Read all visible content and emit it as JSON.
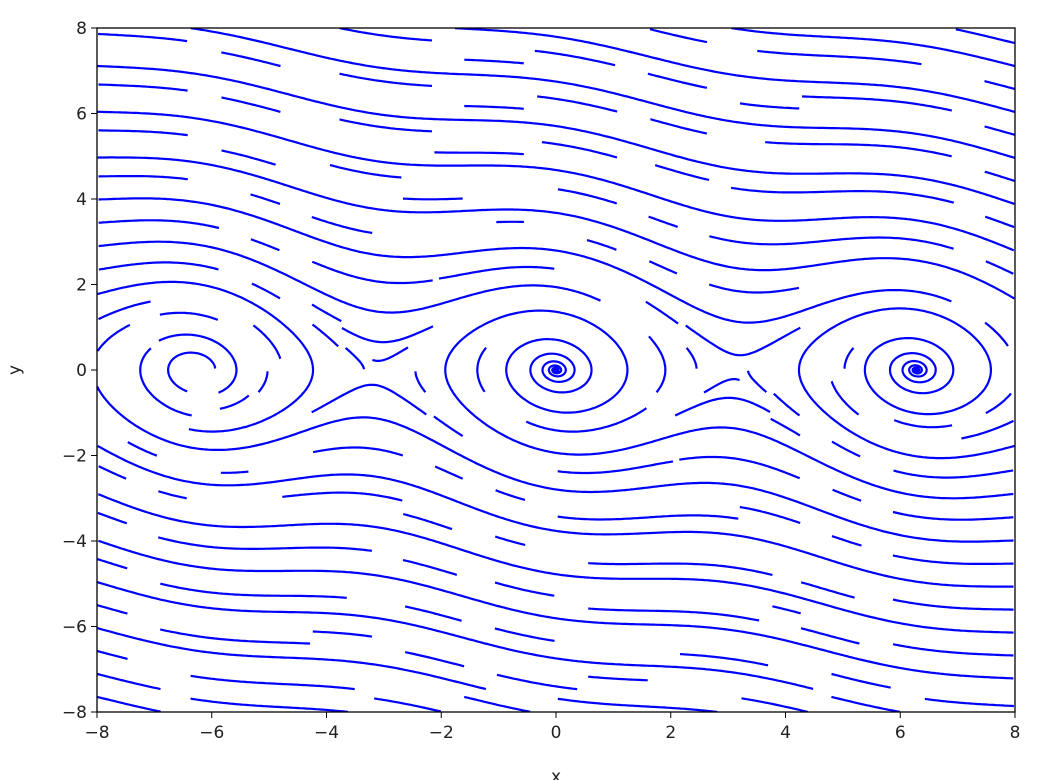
{
  "chart_data": {
    "type": "streamplot",
    "title": "",
    "xlabel": "x",
    "ylabel": "y",
    "xlim": [
      -8,
      8
    ],
    "ylim": [
      -8,
      8
    ],
    "xticks": [
      "−8",
      "−6",
      "−4",
      "−2",
      "0",
      "2",
      "4",
      "6",
      "8"
    ],
    "yticks": [
      "−8",
      "−6",
      "−4",
      "−2",
      "0",
      "2",
      "4",
      "6",
      "8"
    ],
    "xtick_values": [
      -8,
      -6,
      -4,
      -2,
      0,
      2,
      4,
      6,
      8
    ],
    "ytick_values": [
      -8,
      -6,
      -4,
      -2,
      0,
      2,
      4,
      6,
      8
    ],
    "vector_field": {
      "dx_dt": "y",
      "dy_dt": "-sin(x) - 0.2*y"
    },
    "spiral_centers": [
      [
        -6.28,
        0
      ],
      [
        0,
        0
      ],
      [
        6.28,
        0
      ]
    ],
    "grid": false,
    "legend": "none",
    "line_color": "#0000ff"
  }
}
